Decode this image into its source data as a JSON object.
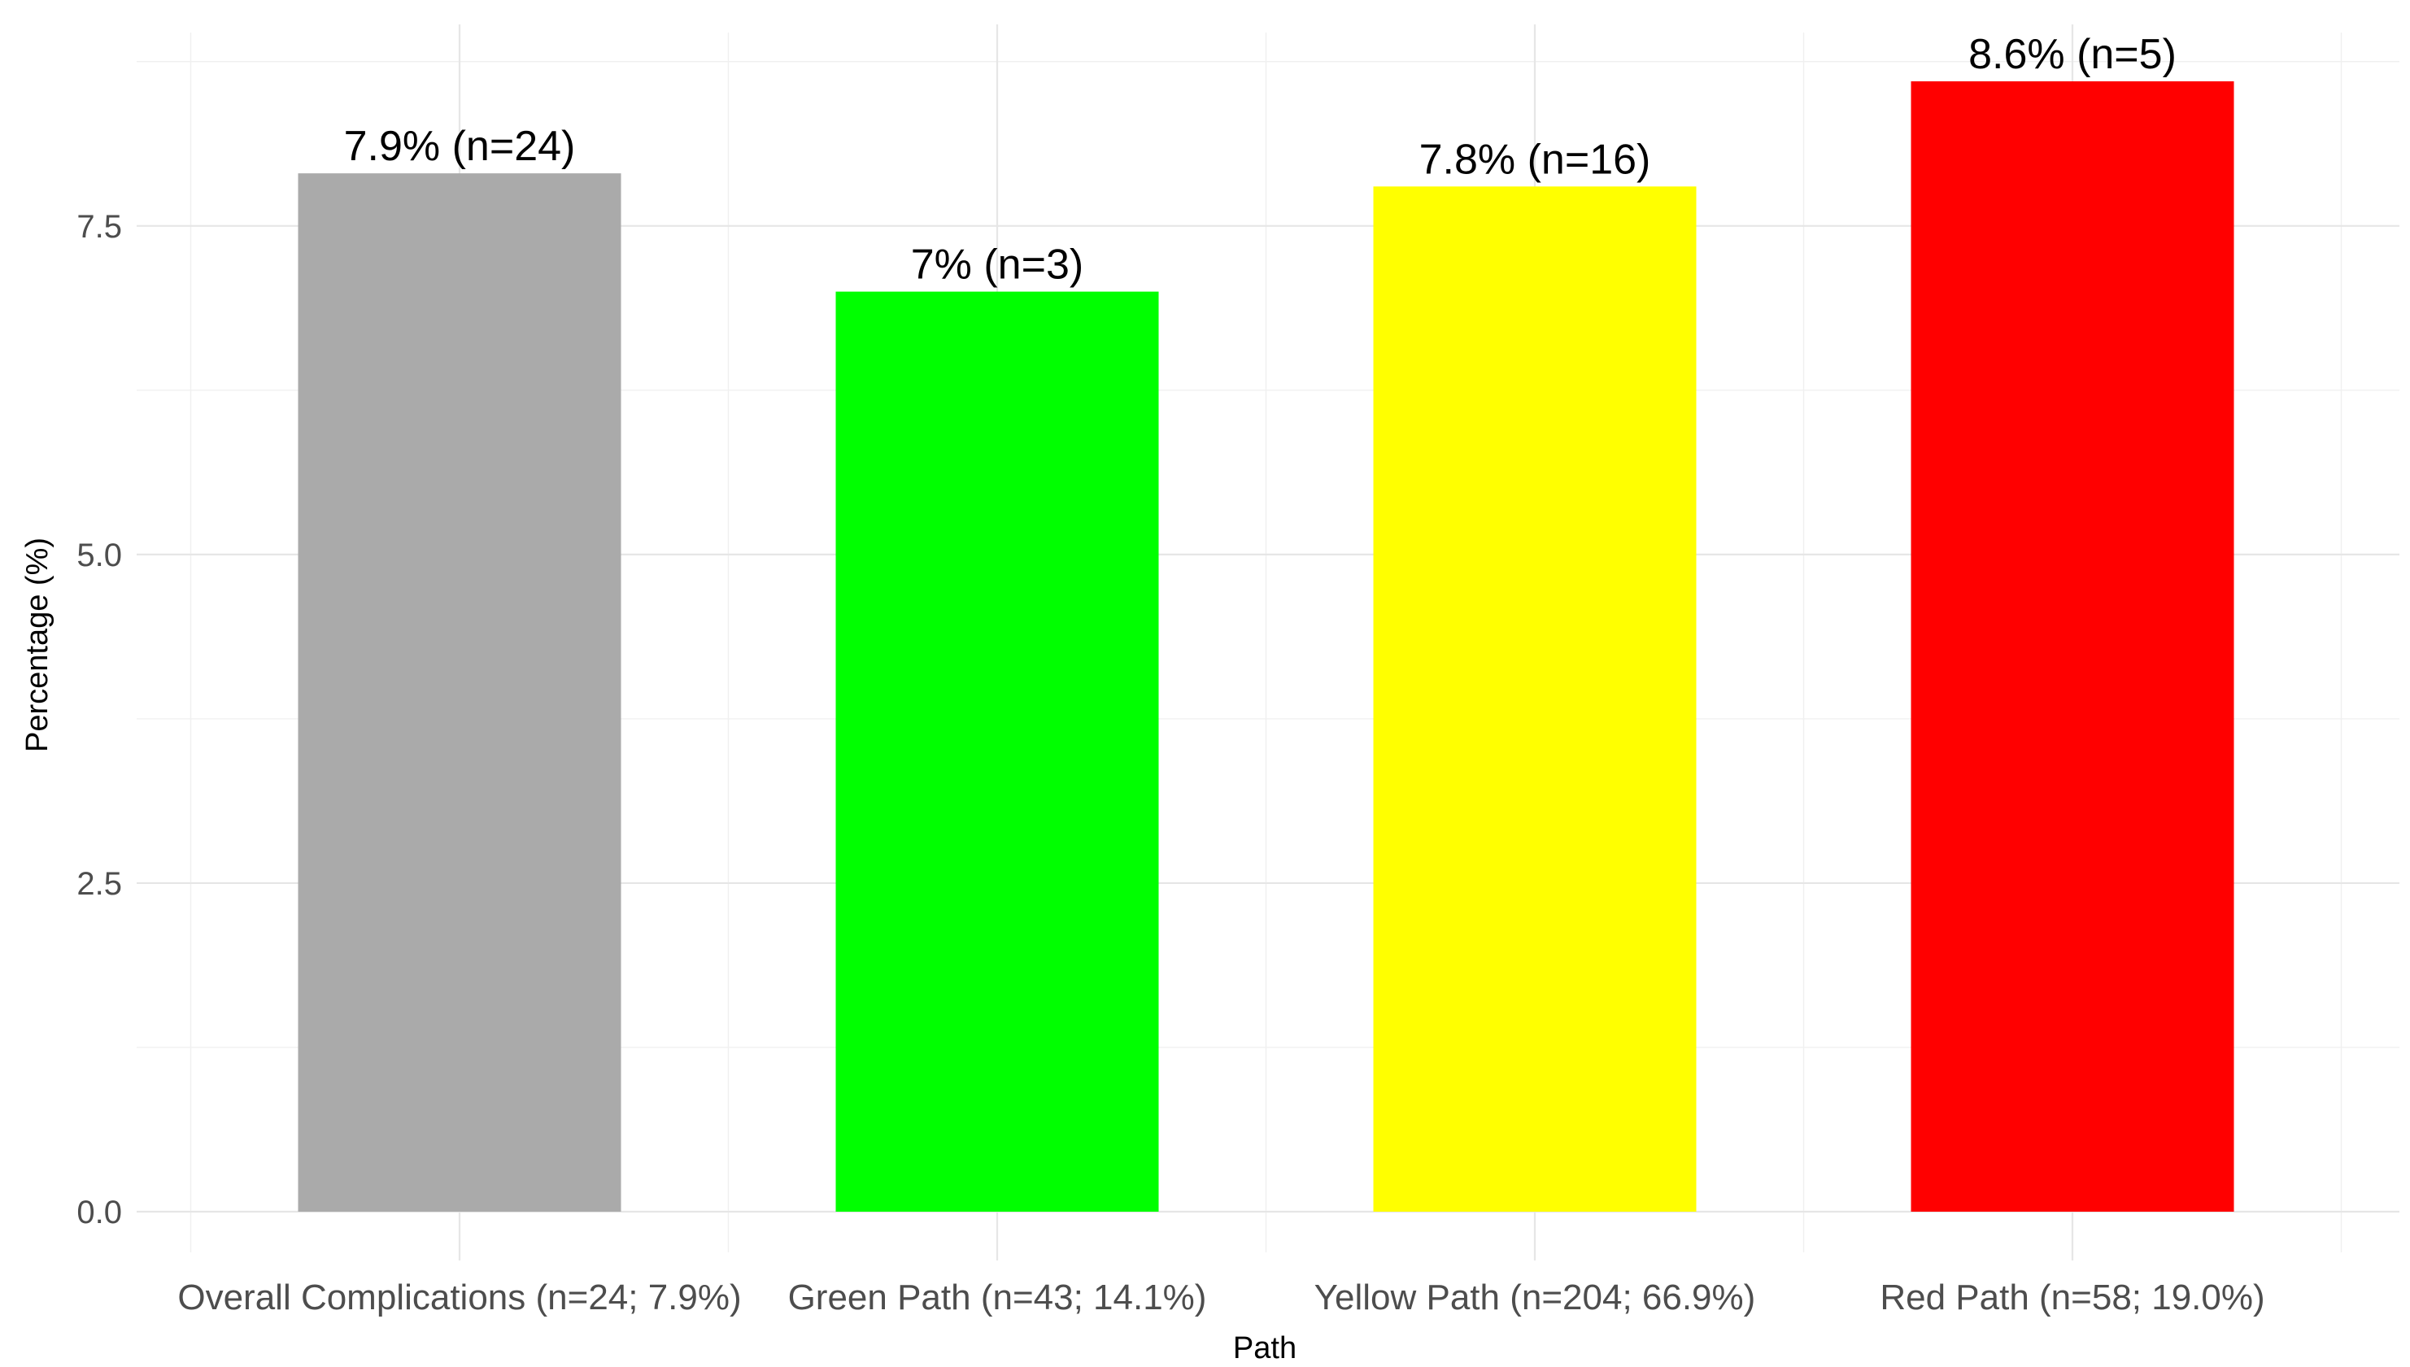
{
  "chart_data": {
    "type": "bar",
    "xlabel": "Path",
    "ylabel": "Percentage (%)",
    "ylim": [
      0,
      8.6
    ],
    "yticks": [
      0.0,
      2.5,
      5.0,
      7.5
    ],
    "ytick_labels": [
      "0.0",
      "2.5",
      "5.0",
      "7.5"
    ],
    "grid": true,
    "legend": "none",
    "categories": [
      "Overall Complications (n=24; 7.9%)",
      "Green Path (n=43; 14.1%)",
      "Yellow Path (n=204; 66.9%)",
      "Red Path (n=58; 19.0%)"
    ],
    "values": [
      7.9,
      7.0,
      7.8,
      8.6
    ],
    "data_labels": [
      "7.9% (n=24)",
      "7% (n=3)",
      "7.8% (n=16)",
      "8.6% (n=5)"
    ],
    "colors": [
      "#aaaaaa",
      "#00ff00",
      "#ffff00",
      "#ff0000"
    ]
  }
}
